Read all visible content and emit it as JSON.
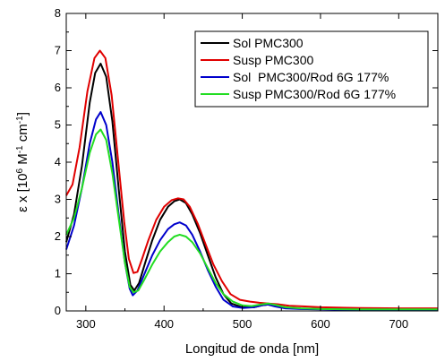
{
  "chart_data": {
    "type": "line",
    "xlabel": "Longitud de onda [nm]",
    "ylabel_parts": {
      "prefix": "ε x [10",
      "exp1": "6",
      "middle": " M",
      "exp2": "-1",
      "middle2": " cm",
      "exp3": "-1",
      "suffix": "]"
    },
    "xlim": [
      275,
      750
    ],
    "ylim": [
      0,
      8
    ],
    "x_ticks": [
      300,
      400,
      500,
      600,
      700
    ],
    "y_ticks": [
      0,
      1,
      2,
      3,
      4,
      5,
      6,
      7,
      8
    ],
    "grid": false,
    "legend_position": "top-right",
    "series": [
      {
        "name": "Sol PMC300",
        "color": "#000000",
        "points": [
          [
            275,
            1.85
          ],
          [
            285,
            2.6
          ],
          [
            295,
            3.9
          ],
          [
            305,
            5.6
          ],
          [
            312,
            6.4
          ],
          [
            319,
            6.65
          ],
          [
            326,
            6.3
          ],
          [
            334,
            5.1
          ],
          [
            342,
            3.3
          ],
          [
            350,
            1.6
          ],
          [
            357,
            0.7
          ],
          [
            362,
            0.55
          ],
          [
            368,
            0.75
          ],
          [
            376,
            1.3
          ],
          [
            385,
            1.9
          ],
          [
            395,
            2.45
          ],
          [
            405,
            2.8
          ],
          [
            413,
            2.95
          ],
          [
            420,
            3.0
          ],
          [
            428,
            2.9
          ],
          [
            436,
            2.6
          ],
          [
            446,
            2.1
          ],
          [
            456,
            1.5
          ],
          [
            466,
            0.9
          ],
          [
            476,
            0.45
          ],
          [
            486,
            0.2
          ],
          [
            500,
            0.1
          ],
          [
            515,
            0.1
          ],
          [
            525,
            0.15
          ],
          [
            533,
            0.17
          ],
          [
            542,
            0.13
          ],
          [
            555,
            0.08
          ],
          [
            575,
            0.06
          ],
          [
            600,
            0.05
          ],
          [
            650,
            0.04
          ],
          [
            700,
            0.04
          ],
          [
            750,
            0.04
          ]
        ]
      },
      {
        "name": "Susp PMC300",
        "color": "#e00000",
        "points": [
          [
            275,
            3.1
          ],
          [
            283,
            3.4
          ],
          [
            292,
            4.4
          ],
          [
            302,
            5.9
          ],
          [
            311,
            6.8
          ],
          [
            318,
            7.0
          ],
          [
            325,
            6.8
          ],
          [
            333,
            5.8
          ],
          [
            341,
            4.1
          ],
          [
            349,
            2.4
          ],
          [
            355,
            1.4
          ],
          [
            361,
            1.02
          ],
          [
            366,
            1.05
          ],
          [
            372,
            1.4
          ],
          [
            380,
            1.9
          ],
          [
            390,
            2.45
          ],
          [
            400,
            2.8
          ],
          [
            410,
            2.98
          ],
          [
            418,
            3.03
          ],
          [
            425,
            3.0
          ],
          [
            433,
            2.8
          ],
          [
            443,
            2.35
          ],
          [
            453,
            1.8
          ],
          [
            463,
            1.25
          ],
          [
            474,
            0.8
          ],
          [
            485,
            0.45
          ],
          [
            497,
            0.3
          ],
          [
            510,
            0.25
          ],
          [
            522,
            0.22
          ],
          [
            533,
            0.2
          ],
          [
            545,
            0.18
          ],
          [
            560,
            0.14
          ],
          [
            580,
            0.12
          ],
          [
            600,
            0.1
          ],
          [
            650,
            0.08
          ],
          [
            700,
            0.07
          ],
          [
            750,
            0.07
          ]
        ]
      },
      {
        "name": "Sol  PMC300/Rod 6G 177%",
        "color": "#0000cc",
        "points": [
          [
            275,
            1.65
          ],
          [
            285,
            2.3
          ],
          [
            295,
            3.3
          ],
          [
            305,
            4.5
          ],
          [
            313,
            5.15
          ],
          [
            319,
            5.35
          ],
          [
            326,
            5.0
          ],
          [
            334,
            4.0
          ],
          [
            342,
            2.6
          ],
          [
            350,
            1.3
          ],
          [
            356,
            0.6
          ],
          [
            360,
            0.42
          ],
          [
            366,
            0.55
          ],
          [
            375,
            1.0
          ],
          [
            385,
            1.5
          ],
          [
            395,
            1.9
          ],
          [
            405,
            2.2
          ],
          [
            413,
            2.33
          ],
          [
            420,
            2.38
          ],
          [
            428,
            2.3
          ],
          [
            436,
            2.05
          ],
          [
            446,
            1.6
          ],
          [
            456,
            1.1
          ],
          [
            466,
            0.65
          ],
          [
            476,
            0.3
          ],
          [
            488,
            0.12
          ],
          [
            500,
            0.08
          ],
          [
            515,
            0.1
          ],
          [
            525,
            0.15
          ],
          [
            533,
            0.17
          ],
          [
            542,
            0.12
          ],
          [
            555,
            0.07
          ],
          [
            575,
            0.05
          ],
          [
            600,
            0.04
          ],
          [
            650,
            0.03
          ],
          [
            700,
            0.03
          ],
          [
            750,
            0.03
          ]
        ]
      },
      {
        "name": "Susp PMC300/Rod 6G 177%",
        "color": "#22dd22",
        "points": [
          [
            275,
            2.05
          ],
          [
            285,
            2.5
          ],
          [
            295,
            3.3
          ],
          [
            305,
            4.25
          ],
          [
            313,
            4.75
          ],
          [
            319,
            4.88
          ],
          [
            326,
            4.6
          ],
          [
            334,
            3.7
          ],
          [
            342,
            2.5
          ],
          [
            350,
            1.3
          ],
          [
            356,
            0.65
          ],
          [
            361,
            0.5
          ],
          [
            367,
            0.55
          ],
          [
            375,
            0.85
          ],
          [
            385,
            1.25
          ],
          [
            395,
            1.6
          ],
          [
            405,
            1.85
          ],
          [
            413,
            2.0
          ],
          [
            420,
            2.05
          ],
          [
            428,
            2.0
          ],
          [
            436,
            1.85
          ],
          [
            446,
            1.55
          ],
          [
            456,
            1.15
          ],
          [
            466,
            0.75
          ],
          [
            476,
            0.45
          ],
          [
            488,
            0.25
          ],
          [
            500,
            0.15
          ],
          [
            512,
            0.13
          ],
          [
            523,
            0.17
          ],
          [
            533,
            0.2
          ],
          [
            543,
            0.16
          ],
          [
            555,
            0.1
          ],
          [
            575,
            0.07
          ],
          [
            600,
            0.05
          ],
          [
            650,
            0.04
          ],
          [
            700,
            0.04
          ],
          [
            750,
            0.04
          ]
        ]
      }
    ]
  }
}
